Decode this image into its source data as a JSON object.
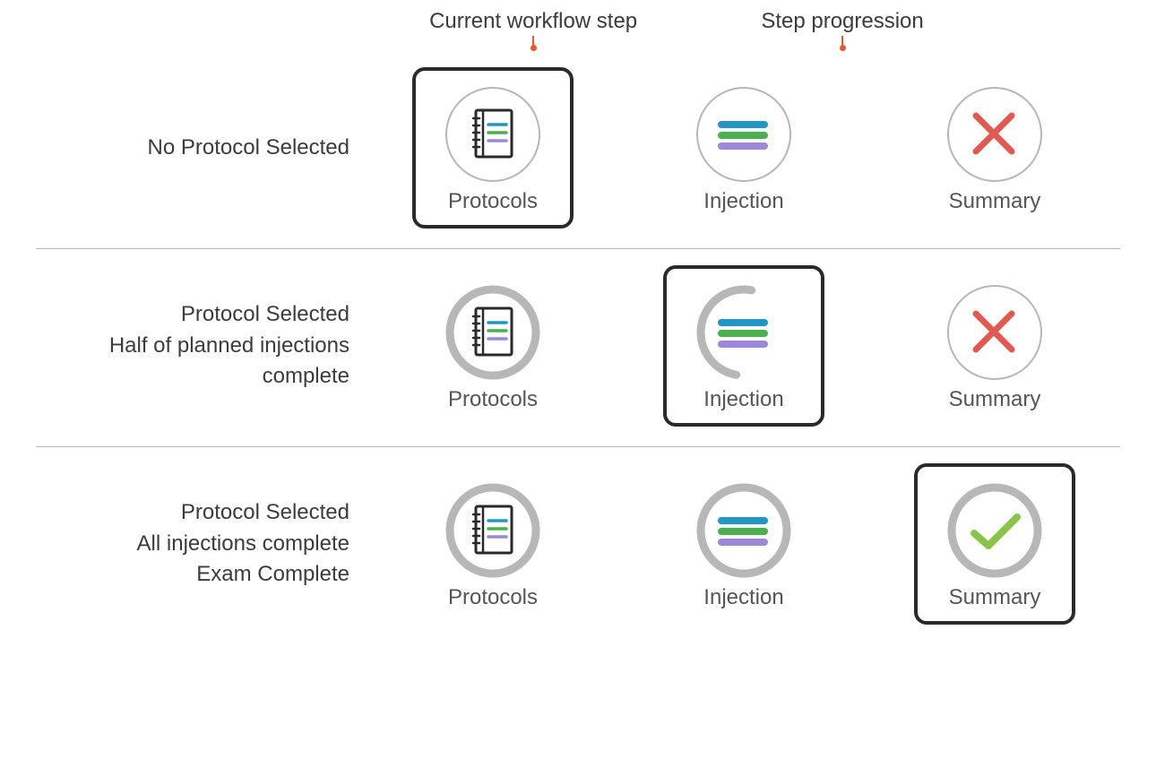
{
  "colors": {
    "text": "#3b3b3b",
    "labelText": "#555558",
    "tileBorderCurrent": "#2a2a2c",
    "ringThin": "#b7b7b7",
    "ringThick": "#b7b7b7",
    "divider": "#b7b7b7",
    "annotationTick": "#e25b2b",
    "xMark": "#e05a52",
    "checkMark": "#8bc34a",
    "stripeBlue": "#2196c4",
    "stripeGreen": "#4caf50",
    "stripePurple": "#9c88d8",
    "notebookOutline": "#2a2a2c",
    "background": "#ffffff"
  },
  "typography": {
    "fontFamily": "-apple-system, Helvetica Neue, Arial, sans-serif",
    "annotationFontSize": 24,
    "descFontSize": 24,
    "labelFontSize": 24,
    "fontWeight": 300
  },
  "layout": {
    "pageWidth": 1290,
    "pageHeight": 857,
    "descColWidth": 370,
    "tileSize": 180,
    "tileRadius": 14,
    "tileBorderWidth": 4,
    "iconCircleDiameter": 110,
    "thinRingStroke": 2,
    "thickRingStroke": 9
  },
  "annotations": {
    "currentStep": "Current workflow step",
    "stepProgression": "Step progression"
  },
  "stepLabels": {
    "protocols": "Protocols",
    "injection": "Injection",
    "summary": "Summary"
  },
  "rows": [
    {
      "descriptionLines": [
        "No Protocol Selected"
      ],
      "steps": [
        {
          "key": "protocols",
          "icon": "notebook",
          "ring": "thin",
          "progressPercent": 0,
          "current": true
        },
        {
          "key": "injection",
          "icon": "stripes",
          "ring": "thin",
          "progressPercent": 0,
          "current": false
        },
        {
          "key": "summary",
          "icon": "x",
          "ring": "thin",
          "progressPercent": 0,
          "current": false
        }
      ]
    },
    {
      "descriptionLines": [
        "Protocol Selected",
        "Half of planned injections complete"
      ],
      "steps": [
        {
          "key": "protocols",
          "icon": "notebook",
          "ring": "thick",
          "progressPercent": 100,
          "current": false
        },
        {
          "key": "injection",
          "icon": "stripes",
          "ring": "thick",
          "progressPercent": 50,
          "current": true
        },
        {
          "key": "summary",
          "icon": "x",
          "ring": "thin",
          "progressPercent": 0,
          "current": false
        }
      ]
    },
    {
      "descriptionLines": [
        "Protocol Selected",
        "All injections complete",
        "Exam Complete"
      ],
      "steps": [
        {
          "key": "protocols",
          "icon": "notebook",
          "ring": "thick",
          "progressPercent": 100,
          "current": false
        },
        {
          "key": "injection",
          "icon": "stripes",
          "ring": "thick",
          "progressPercent": 100,
          "current": false
        },
        {
          "key": "summary",
          "icon": "check",
          "ring": "thick",
          "progressPercent": 100,
          "current": true
        }
      ]
    }
  ]
}
